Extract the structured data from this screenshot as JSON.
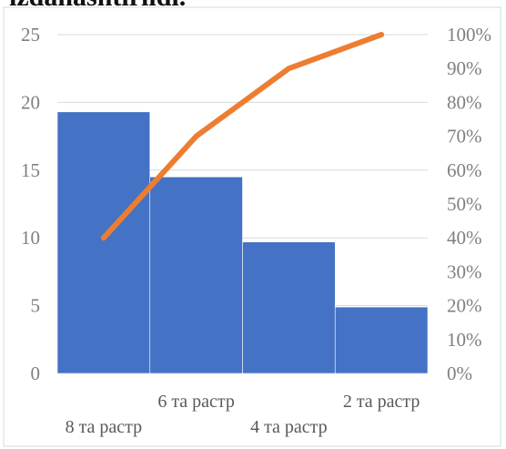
{
  "page": {
    "cut_title": "izdanashtirildi."
  },
  "chart_data": {
    "type": "bar",
    "categories": [
      "8 та растр",
      "6 та растр",
      "4 та растр",
      "2 та растр"
    ],
    "series": [
      {
        "type": "bar",
        "values": [
          19.3,
          14.5,
          9.7,
          4.9
        ],
        "axis": "left",
        "color": "#4472c4"
      },
      {
        "type": "line",
        "values": [
          40,
          70,
          90,
          100
        ],
        "axis": "right",
        "unit": "%",
        "color": "#ed7d31"
      }
    ],
    "y_left": {
      "ylim": [
        0,
        25
      ],
      "ticks": [
        "0",
        "5",
        "10",
        "15",
        "20",
        "25"
      ]
    },
    "y_right": {
      "ylim": [
        0,
        100
      ],
      "ticks": [
        "0%",
        "10%",
        "20%",
        "30%",
        "40%",
        "50%",
        "60%",
        "70%",
        "80%",
        "90%",
        "100%"
      ]
    },
    "title": "",
    "xlabel": "",
    "ylabel": "",
    "grid": true,
    "legend": "none"
  }
}
